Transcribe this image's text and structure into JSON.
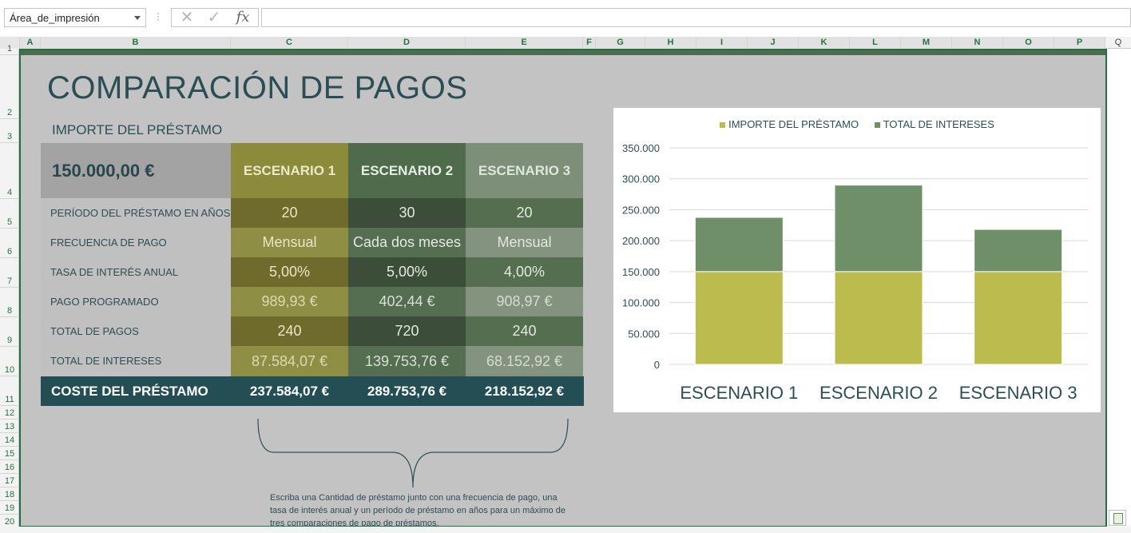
{
  "formula_bar": {
    "name_box": "Área_de_impresión",
    "fx_label": "fx",
    "cancel_icon": "cancel-icon",
    "enter_icon": "check-icon",
    "formula": ""
  },
  "columns": [
    "A",
    "B",
    "C",
    "D",
    "E",
    "F",
    "G",
    "H",
    "I",
    "J",
    "K",
    "L",
    "M",
    "N",
    "O",
    "P",
    "Q"
  ],
  "rows": [
    "1",
    "2",
    "3",
    "4",
    "5",
    "6",
    "7",
    "8",
    "9",
    "10",
    "11",
    "12",
    "13",
    "14",
    "15",
    "16",
    "17",
    "18",
    "19",
    "20"
  ],
  "sheet": {
    "title": "COMPARACIÓN DE PAGOS",
    "subtitle": "IMPORTE DEL PRÉSTAMO",
    "loan_amount": "150.000,00 €",
    "scenarios": [
      "ESCENARIO 1",
      "ESCENARIO 2",
      "ESCENARIO 3"
    ],
    "row_labels": [
      "PERÍODO DEL PRÉSTAMO EN AÑOS",
      "FRECUENCIA DE PAGO",
      "TASA DE INTERÉS ANUAL",
      "PAGO PROGRAMADO",
      "TOTAL DE PAGOS",
      "TOTAL DE INTERESES"
    ],
    "values": [
      [
        "20",
        "30",
        "20"
      ],
      [
        "Mensual",
        "Cada dos meses",
        "Mensual"
      ],
      [
        "5,00%",
        "5,00%",
        "4,00%"
      ],
      [
        "989,93 €",
        "402,44 €",
        "908,97 €"
      ],
      [
        "240",
        "720",
        "240"
      ],
      [
        "87.584,07 €",
        "139.753,76 €",
        "68.152,92 €"
      ]
    ],
    "total_label": "COSTE DEL PRÉSTAMO",
    "totals": [
      "237.584,07 €",
      "289.753,76 €",
      "218.152,92 €"
    ],
    "note": "Escriba una Cantidad de préstamo junto con una frecuencia de pago, una tasa de interés anual y un período de préstamo en años para un máximo de tres comparaciones de pago de préstamos."
  },
  "colors": {
    "scenario_header": [
      "#8c8a3b",
      "#4f6b4c",
      "#7d8f79"
    ],
    "scenario_dark": [
      "#6f6b2c",
      "#3c4e3a",
      "#546e4f"
    ],
    "scenario_light": [
      "#8f8e45",
      "#556e51",
      "#849280"
    ],
    "series_loan": "#bcbb4e",
    "series_interest": "#6e8f67",
    "accent": "#217346"
  },
  "chart_data": {
    "type": "bar",
    "stacked": true,
    "categories": [
      "ESCENARIO 1",
      "ESCENARIO 2",
      "ESCENARIO 3"
    ],
    "series": [
      {
        "name": "IMPORTE DEL PRÉSTAMO",
        "values": [
          150000,
          150000,
          150000
        ]
      },
      {
        "name": "TOTAL DE INTERESES",
        "values": [
          87584.07,
          139753.76,
          68152.92
        ]
      }
    ],
    "yticks": [
      "0",
      "50.000",
      "100.000",
      "150.000",
      "200.000",
      "250.000",
      "300.000",
      "350.000"
    ],
    "ylim": [
      0,
      350000
    ],
    "grid": true,
    "legend": "top-center"
  }
}
